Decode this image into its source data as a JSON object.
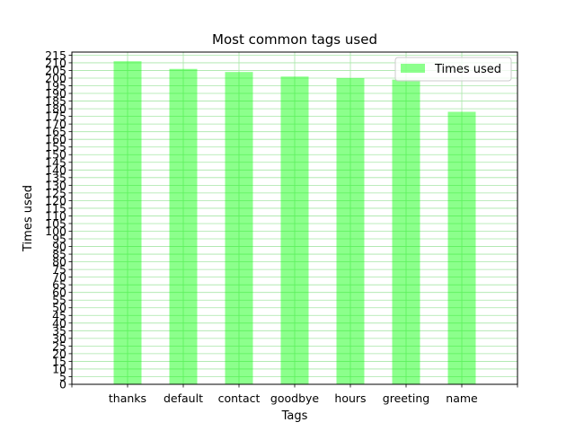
{
  "chart_data": {
    "type": "bar",
    "title": "Most common tags used",
    "xlabel": "Tags",
    "ylabel": "Times used",
    "categories": [
      "thanks",
      "default",
      "contact",
      "goodbye",
      "hours",
      "greeting",
      "name"
    ],
    "series": [
      {
        "name": "Times used",
        "values": [
          211,
          206,
          204,
          201,
          200,
          199,
          178
        ]
      }
    ],
    "ylim": [
      0,
      217
    ],
    "ytick_step": 5,
    "grid": true,
    "legend": "upper-right",
    "colors": {
      "bar": "#00ff00",
      "bar_alpha": 0.45,
      "grid": "#a8e6a8"
    }
  }
}
